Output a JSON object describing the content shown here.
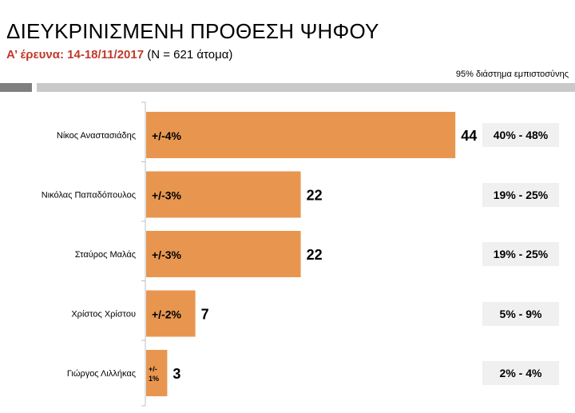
{
  "title": "ΔΙΕΥΚΡΙΝΙΣΜΕΝΗ ΠΡΟΘΕΣΗ ΨΗΦΟΥ",
  "subtitle": {
    "accent": "Α’ έρευνα: 14-18/11/2017",
    "rest": " (Ν = 621 άτομα)"
  },
  "ci_note": "95% διάστημα εμπιστοσύνης",
  "colors": {
    "bar": "#e8964f",
    "accent": "#c0392b",
    "axis": "#bfbfbf",
    "ci_box": "#f0f0f0"
  },
  "chart_data": {
    "type": "bar",
    "orientation": "horizontal",
    "categories": [
      "Νίκος Αναστασιάδης",
      "Νικόλας Παπαδόπουλος",
      "Σταύρος Μαλάς",
      "Χρίστος Χρίστου",
      "Γιώργος Λιλλήκας"
    ],
    "values": [
      44,
      22,
      22,
      7,
      3
    ],
    "margins": [
      "+/-4%",
      "+/-3%",
      "+/-3%",
      "+/-2%",
      "+/-\n1%"
    ],
    "confidence_intervals": [
      "40% - 48%",
      "19% - 25%",
      "19% - 25%",
      "5% - 9%",
      "2% - 4%"
    ],
    "xlim": [
      0,
      50
    ],
    "grid": false
  }
}
